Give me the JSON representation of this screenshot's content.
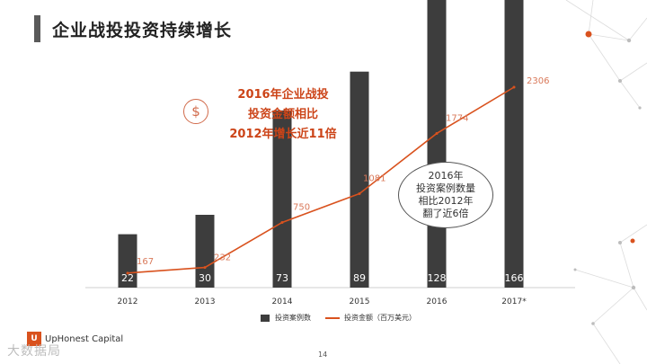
{
  "slide": {
    "title": "企业战投投资持续增长",
    "callout_lines": [
      "2016年企业战投",
      "投资金额相比",
      "2012年增长近11倍"
    ],
    "oval_lines": [
      "2016年",
      "投资案例数量",
      "相比2012年",
      "翻了近6倍"
    ],
    "page_number": "14",
    "logo_text": "UpHonest Capital",
    "watermark": "大数据局",
    "icons": {
      "callout": "dollar-icon",
      "logo": "uphonest-logo-icon"
    },
    "colors": {
      "bar": "#3d3d3d",
      "line": "#d9521e",
      "callout": "#cc4418",
      "accent_dot": "#d9521e"
    }
  },
  "chart_data": {
    "type": "bar",
    "categories": [
      "2012",
      "2013",
      "2014",
      "2015",
      "2016",
      "2017*"
    ],
    "series": [
      {
        "name": "投资案例数",
        "type": "bar",
        "values": [
          22,
          30,
          73,
          89,
          128,
          166
        ]
      },
      {
        "name": "投资金额（百万美元）",
        "type": "line",
        "values": [
          167,
          232,
          750,
          1081,
          1774,
          2306
        ]
      }
    ],
    "title": "",
    "xlabel": "",
    "ylabel": "",
    "legend_position": "bottom",
    "grid": false
  }
}
